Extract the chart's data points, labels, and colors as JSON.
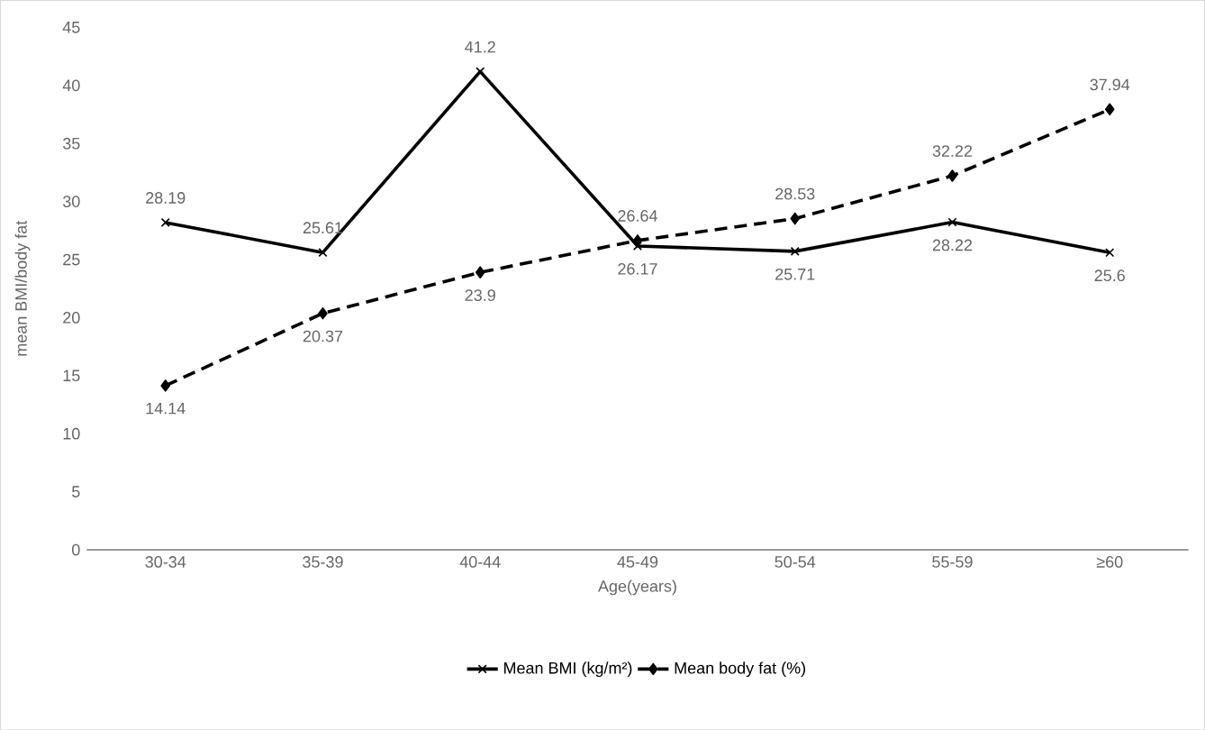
{
  "chart_data": {
    "type": "line",
    "xlabel": "Age(years)",
    "ylabel": "mean BMI/body fat",
    "categories": [
      "30-34",
      "35-39",
      "40-44",
      "45-49",
      "50-54",
      "55-59",
      "≥60"
    ],
    "series": [
      {
        "name": "Mean BMI (kg/m²)",
        "color": "#000000",
        "marker": "cross",
        "line_style": "solid",
        "values": [
          28.19,
          25.61,
          41.2,
          26.17,
          25.71,
          28.22,
          25.6
        ]
      },
      {
        "name": "Mean body fat (%)",
        "color": "#000000",
        "marker": "diamond",
        "line_style": "dashed",
        "values": [
          14.14,
          20.37,
          23.9,
          26.64,
          28.53,
          32.22,
          37.94
        ]
      }
    ],
    "ylim": [
      0,
      45
    ],
    "yticks": [
      0,
      5,
      10,
      15,
      20,
      25,
      30,
      35,
      40,
      45
    ],
    "data_labels": true,
    "grid": false,
    "legend": "bottom"
  }
}
